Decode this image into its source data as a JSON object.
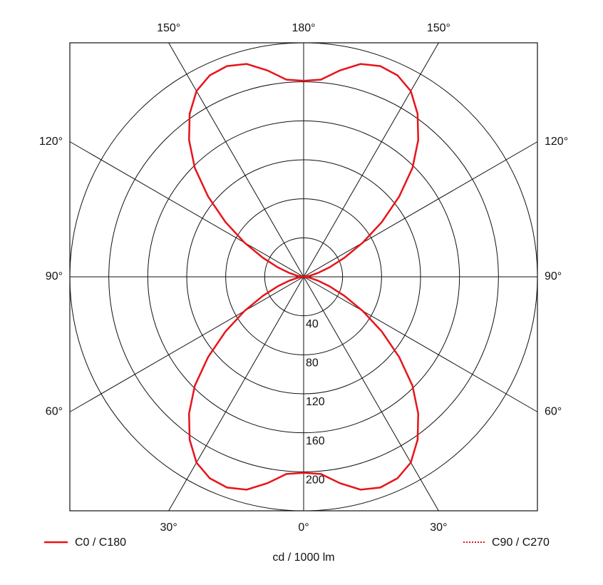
{
  "chart_data": {
    "type": "polar",
    "radial_label": "cd / 1000 lm",
    "rlim": [
      0,
      240
    ],
    "rticks": [
      40,
      80,
      120,
      160,
      200
    ],
    "angle_ticks": [
      {
        "value": 0,
        "label": "0°",
        "side": "bottom"
      },
      {
        "value": -30,
        "label": "30°",
        "side": "left"
      },
      {
        "value": -60,
        "label": "60°",
        "side": "left"
      },
      {
        "value": -90,
        "label": "90°",
        "side": "left"
      },
      {
        "value": -120,
        "label": "120°",
        "side": "left"
      },
      {
        "value": -150,
        "label": "150°",
        "side": "left"
      },
      {
        "value": 180,
        "label": "180°",
        "side": "top"
      },
      {
        "value": 150,
        "label": "150°",
        "side": "right"
      },
      {
        "value": 120,
        "label": "120°",
        "side": "right"
      },
      {
        "value": 90,
        "label": "90°",
        "side": "right"
      },
      {
        "value": 60,
        "label": "60°",
        "side": "right"
      },
      {
        "value": 30,
        "label": "30°",
        "side": "right"
      }
    ],
    "x": [
      -180,
      -175,
      -170,
      -165,
      -160,
      -155,
      -150,
      -145,
      -140,
      -135,
      -130,
      -125,
      -120,
      -115,
      -110,
      -105,
      -100,
      -95,
      -90,
      -85,
      -80,
      -75,
      -70,
      -65,
      -60,
      -55,
      -50,
      -45,
      -40,
      -35,
      -30,
      -25,
      -20,
      -15,
      -10,
      -5,
      0,
      5,
      10,
      15,
      20,
      25,
      30,
      35,
      40,
      45,
      50,
      55,
      60,
      65,
      70,
      75,
      80,
      85,
      90,
      95,
      100,
      105,
      110,
      115,
      120,
      125,
      130,
      135,
      140,
      145,
      150,
      155,
      160,
      165,
      170,
      175,
      180
    ],
    "series": [
      {
        "name": "C0 / C180",
        "color": "#e8141c",
        "dash": "solid",
        "values": [
          201,
          203,
          215,
          226,
          230,
          228,
          220,
          204,
          183,
          158,
          128,
          98,
          70,
          46,
          28,
          15,
          7,
          2,
          0,
          2,
          7,
          15,
          28,
          46,
          70,
          98,
          128,
          158,
          183,
          204,
          220,
          228,
          230,
          226,
          215,
          203,
          201,
          203,
          215,
          226,
          230,
          228,
          220,
          204,
          183,
          158,
          128,
          98,
          70,
          46,
          28,
          15,
          7,
          2,
          0,
          2,
          7,
          15,
          28,
          46,
          70,
          98,
          128,
          158,
          183,
          204,
          220,
          228,
          230,
          226,
          215,
          203,
          201
        ]
      },
      {
        "name": "C90 / C270",
        "color": "#e8141c",
        "dash": "dotted",
        "values": [
          201,
          203,
          215,
          226,
          230,
          228,
          220,
          204,
          183,
          158,
          128,
          98,
          70,
          46,
          28,
          15,
          7,
          2,
          0,
          2,
          7,
          15,
          28,
          46,
          70,
          98,
          128,
          158,
          183,
          204,
          220,
          228,
          230,
          226,
          215,
          203,
          201,
          203,
          215,
          226,
          230,
          228,
          220,
          204,
          183,
          158,
          128,
          98,
          70,
          46,
          28,
          15,
          7,
          2,
          0,
          2,
          7,
          15,
          28,
          46,
          70,
          98,
          128,
          158,
          183,
          204,
          220,
          228,
          230,
          226,
          215,
          203,
          201
        ]
      }
    ]
  }
}
